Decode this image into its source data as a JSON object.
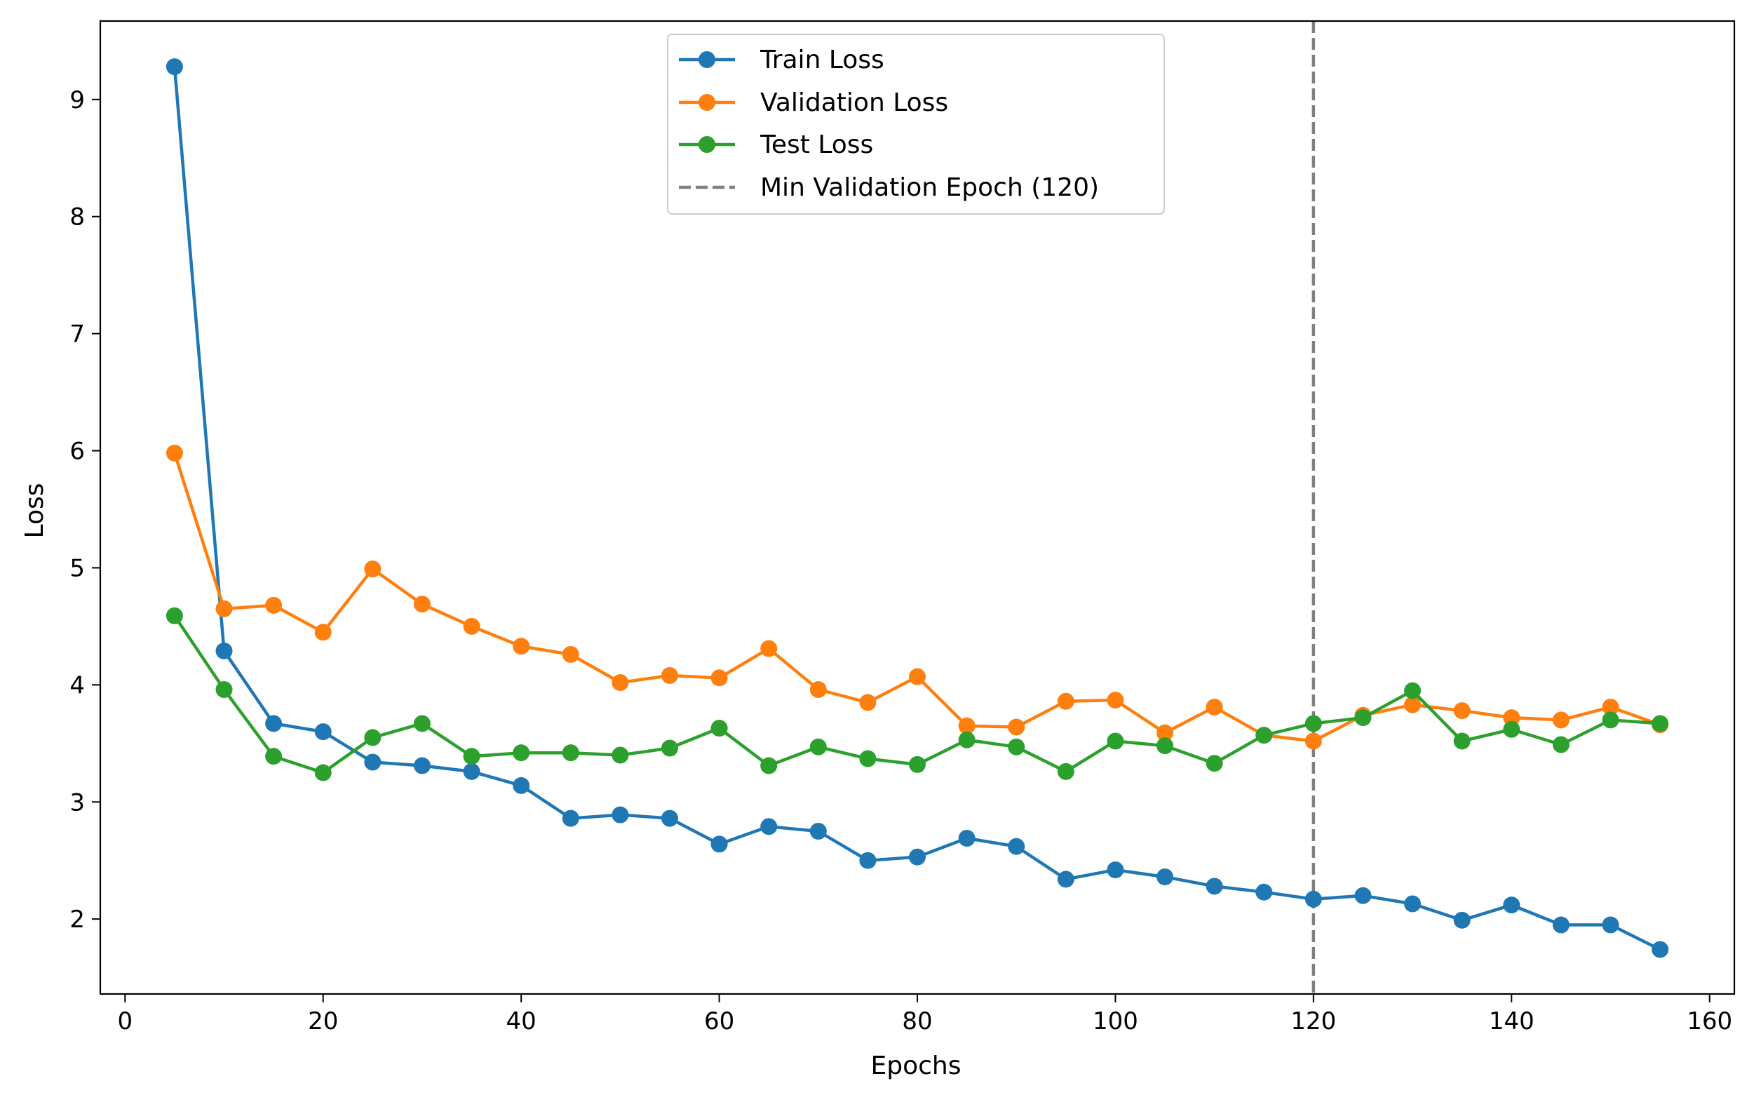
{
  "chart_data": {
    "type": "line",
    "xlabel": "Epochs",
    "ylabel": "Loss",
    "xlim": [
      -2.5,
      162.5
    ],
    "ylim": [
      1.36,
      9.67
    ],
    "xticks": [
      0,
      20,
      40,
      60,
      80,
      100,
      120,
      140,
      160
    ],
    "yticks": [
      2,
      3,
      4,
      5,
      6,
      7,
      8,
      9
    ],
    "grid": false,
    "legend_position": "top-center",
    "x": [
      5,
      10,
      15,
      20,
      25,
      30,
      35,
      40,
      45,
      50,
      55,
      60,
      65,
      70,
      75,
      80,
      85,
      90,
      95,
      100,
      105,
      110,
      115,
      120,
      125,
      130,
      135,
      140,
      145,
      150,
      155
    ],
    "series": [
      {
        "name": "Train Loss",
        "color": "#1f77b4",
        "values": [
          9.28,
          4.29,
          3.67,
          3.6,
          3.34,
          3.31,
          3.26,
          3.14,
          2.86,
          2.89,
          2.86,
          2.64,
          2.79,
          2.75,
          2.5,
          2.53,
          2.69,
          2.62,
          2.34,
          2.42,
          2.36,
          2.28,
          2.23,
          2.17,
          2.2,
          2.13,
          1.99,
          2.12,
          1.95,
          1.95,
          1.74
        ]
      },
      {
        "name": "Validation Loss",
        "color": "#ff7f0e",
        "values": [
          5.98,
          4.65,
          4.68,
          4.45,
          4.99,
          4.69,
          4.5,
          4.33,
          4.26,
          4.02,
          4.08,
          4.06,
          4.31,
          3.96,
          3.85,
          4.07,
          3.65,
          3.64,
          3.86,
          3.87,
          3.59,
          3.81,
          3.57,
          3.52,
          3.74,
          3.83,
          3.78,
          3.72,
          3.7,
          3.81,
          3.66
        ]
      },
      {
        "name": "Test Loss",
        "color": "#2ca02c",
        "values": [
          4.59,
          3.96,
          3.39,
          3.25,
          3.55,
          3.67,
          3.39,
          3.42,
          3.42,
          3.4,
          3.46,
          3.63,
          3.31,
          3.47,
          3.37,
          3.32,
          3.53,
          3.47,
          3.26,
          3.52,
          3.48,
          3.33,
          3.57,
          3.67,
          3.72,
          3.95,
          3.52,
          3.62,
          3.49,
          3.7,
          3.67
        ]
      }
    ],
    "reference_line": {
      "name": "Min Validation Epoch (120)",
      "x": 120,
      "color": "#7f7f7f",
      "style": "dashed"
    }
  }
}
